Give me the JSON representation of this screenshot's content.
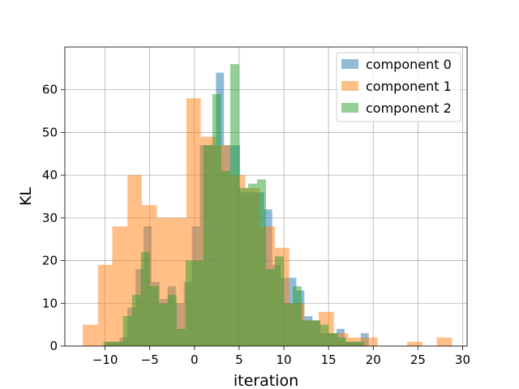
{
  "chart_data": {
    "type": "bar",
    "title": "",
    "xlabel": "iteration",
    "ylabel": "KL",
    "xlim": [
      -14.5,
      30.5
    ],
    "ylim": [
      0,
      70
    ],
    "xticks": [
      -10,
      -5,
      0,
      5,
      10,
      15,
      20,
      25,
      30
    ],
    "yticks": [
      0,
      10,
      20,
      30,
      40,
      50,
      60
    ],
    "xtick_labels": [
      "−10",
      "−5",
      "0",
      "5",
      "10",
      "15",
      "20",
      "25",
      "30"
    ],
    "ytick_labels": [
      "0",
      "10",
      "20",
      "30",
      "40",
      "50",
      "60"
    ],
    "grid": true,
    "legend_position": "top-right",
    "series": [
      {
        "name": "component 0",
        "color": "#1f77b4",
        "opacity": 0.5,
        "bins": [
          [
            -10.2,
            -9.3,
            1
          ],
          [
            -9.3,
            -8.4,
            1
          ],
          [
            -8.4,
            -7.5,
            2
          ],
          [
            -7.5,
            -6.6,
            9
          ],
          [
            -6.6,
            -5.7,
            18
          ],
          [
            -5.7,
            -4.8,
            28
          ],
          [
            -4.8,
            -3.9,
            15
          ],
          [
            -3.9,
            -3.0,
            11
          ],
          [
            -3.0,
            -2.1,
            14
          ],
          [
            -2.1,
            -1.2,
            10
          ],
          [
            -1.2,
            -0.3,
            15
          ],
          [
            -0.3,
            0.6,
            28
          ],
          [
            0.6,
            1.5,
            47
          ],
          [
            1.5,
            2.4,
            47
          ],
          [
            2.4,
            3.3,
            64
          ],
          [
            3.3,
            4.2,
            47
          ],
          [
            4.2,
            5.1,
            47
          ],
          [
            5.1,
            6.0,
            36
          ],
          [
            6.0,
            6.9,
            36
          ],
          [
            6.9,
            7.8,
            36
          ],
          [
            7.8,
            8.7,
            32
          ],
          [
            8.7,
            9.6,
            19
          ],
          [
            9.6,
            10.5,
            16
          ],
          [
            10.5,
            11.4,
            16
          ],
          [
            11.4,
            12.3,
            13
          ],
          [
            12.3,
            13.2,
            7
          ],
          [
            13.2,
            14.1,
            6
          ],
          [
            14.1,
            15.0,
            3
          ],
          [
            15.0,
            15.9,
            3
          ],
          [
            15.9,
            16.8,
            4
          ],
          [
            16.8,
            17.7,
            1
          ],
          [
            17.7,
            18.6,
            1
          ],
          [
            18.6,
            19.5,
            3
          ],
          [
            19.5,
            20.4,
            0
          ]
        ]
      },
      {
        "name": "component 1",
        "color": "#ff7f0e",
        "opacity": 0.5,
        "bins": [
          [
            -12.5,
            -10.8,
            5
          ],
          [
            -10.8,
            -9.2,
            19
          ],
          [
            -9.2,
            -7.5,
            28
          ],
          [
            -7.5,
            -5.9,
            40
          ],
          [
            -5.9,
            -4.2,
            33
          ],
          [
            -4.2,
            -2.6,
            30
          ],
          [
            -2.6,
            -0.9,
            30
          ],
          [
            -0.9,
            0.7,
            58
          ],
          [
            0.7,
            2.4,
            49
          ],
          [
            2.4,
            4.0,
            47
          ],
          [
            4.0,
            5.7,
            40
          ],
          [
            5.7,
            7.3,
            37
          ],
          [
            7.3,
            9.0,
            28
          ],
          [
            9.0,
            10.6,
            23
          ],
          [
            10.6,
            12.3,
            10
          ],
          [
            12.3,
            13.9,
            6
          ],
          [
            13.9,
            15.6,
            8
          ],
          [
            15.6,
            17.2,
            3
          ],
          [
            17.2,
            18.9,
            2
          ],
          [
            18.9,
            20.5,
            2
          ],
          [
            20.5,
            22.2,
            0
          ],
          [
            22.2,
            23.8,
            0
          ],
          [
            23.8,
            25.5,
            1
          ],
          [
            25.5,
            27.1,
            0
          ],
          [
            27.1,
            28.8,
            2
          ]
        ]
      },
      {
        "name": "component 2",
        "color": "#2ca02c",
        "opacity": 0.5,
        "bins": [
          [
            -10.0,
            -9.0,
            1
          ],
          [
            -9.0,
            -8.0,
            1
          ],
          [
            -8.0,
            -7.0,
            7
          ],
          [
            -7.0,
            -6.0,
            12
          ],
          [
            -6.0,
            -5.0,
            22
          ],
          [
            -5.0,
            -4.0,
            14
          ],
          [
            -4.0,
            -3.0,
            10
          ],
          [
            -3.0,
            -2.0,
            12
          ],
          [
            -2.0,
            -1.0,
            4
          ],
          [
            -1.0,
            0.0,
            20
          ],
          [
            0.0,
            1.0,
            20
          ],
          [
            1.0,
            2.0,
            47
          ],
          [
            2.0,
            3.0,
            59
          ],
          [
            3.0,
            4.0,
            41
          ],
          [
            4.0,
            5.0,
            66
          ],
          [
            5.0,
            6.0,
            37
          ],
          [
            6.0,
            7.0,
            38
          ],
          [
            7.0,
            8.0,
            39
          ],
          [
            8.0,
            9.0,
            18
          ],
          [
            9.0,
            10.0,
            21
          ],
          [
            10.0,
            11.0,
            10
          ],
          [
            11.0,
            12.0,
            14
          ],
          [
            12.0,
            13.0,
            6
          ],
          [
            13.0,
            14.0,
            6
          ],
          [
            14.0,
            15.0,
            5
          ],
          [
            15.0,
            16.0,
            3
          ],
          [
            16.0,
            17.0,
            2
          ],
          [
            17.0,
            18.0,
            1
          ],
          [
            18.0,
            19.0,
            1
          ]
        ]
      }
    ]
  }
}
